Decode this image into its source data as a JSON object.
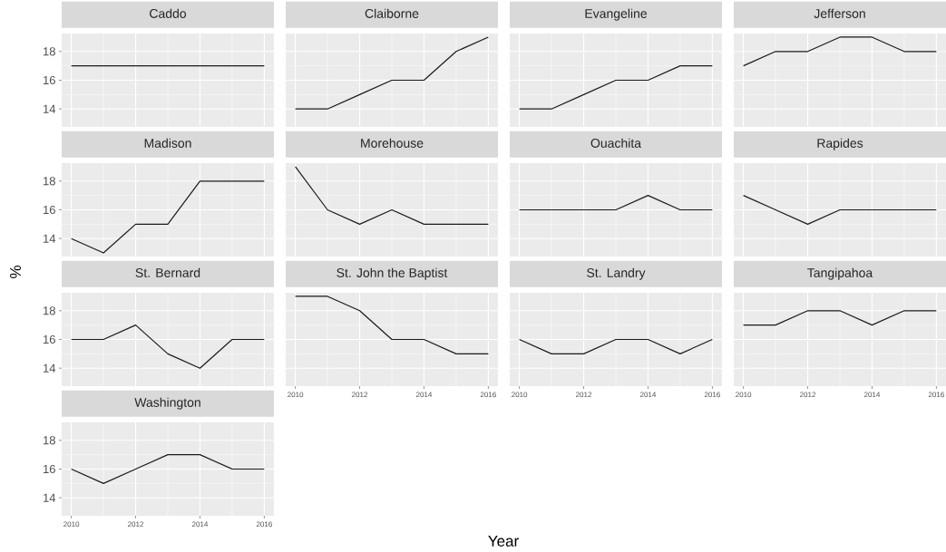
{
  "chart_data": [
    {
      "type": "line",
      "title": "Caddo",
      "x": [
        2010,
        2011,
        2012,
        2013,
        2014,
        2015,
        2016
      ],
      "values": [
        17,
        17,
        17,
        17,
        17,
        17,
        17
      ],
      "color": "#1a1a1a",
      "xlim": [
        2009.7,
        2016.3
      ],
      "ylim": [
        12.75,
        19.25
      ],
      "xticks": [
        2010,
        2012,
        2014,
        2016
      ],
      "yticks": [
        14,
        16,
        18
      ],
      "grid": true,
      "tick_labels": "y"
    },
    {
      "type": "line",
      "title": "Claiborne",
      "x": [
        2010,
        2011,
        2012,
        2013,
        2014,
        2015,
        2016
      ],
      "values": [
        14,
        14,
        15,
        16,
        16,
        18,
        19
      ],
      "color": "#1a1a1a",
      "xlim": [
        2009.7,
        2016.3
      ],
      "ylim": [
        12.75,
        19.25
      ],
      "xticks": [
        2010,
        2012,
        2014,
        2016
      ],
      "yticks": [
        14,
        16,
        18
      ],
      "grid": true,
      "tick_labels": false
    },
    {
      "type": "line",
      "title": "Evangeline",
      "x": [
        2010,
        2011,
        2012,
        2013,
        2014,
        2015,
        2016
      ],
      "values": [
        14,
        14,
        15,
        16,
        16,
        17,
        17
      ],
      "color": "#1a1a1a",
      "xlim": [
        2009.7,
        2016.3
      ],
      "ylim": [
        12.75,
        19.25
      ],
      "xticks": [
        2010,
        2012,
        2014,
        2016
      ],
      "yticks": [
        14,
        16,
        18
      ],
      "grid": true,
      "tick_labels": false
    },
    {
      "type": "line",
      "title": "Jefferson",
      "x": [
        2010,
        2011,
        2012,
        2013,
        2014,
        2015,
        2016
      ],
      "values": [
        17,
        18,
        18,
        19,
        19,
        18,
        18
      ],
      "color": "#1a1a1a",
      "xlim": [
        2009.7,
        2016.3
      ],
      "ylim": [
        12.75,
        19.25
      ],
      "xticks": [
        2010,
        2012,
        2014,
        2016
      ],
      "yticks": [
        14,
        16,
        18
      ],
      "grid": true,
      "tick_labels": false
    },
    {
      "type": "line",
      "title": "Madison",
      "x": [
        2010,
        2011,
        2012,
        2013,
        2014,
        2015,
        2016
      ],
      "values": [
        14,
        13,
        15,
        15,
        18,
        18,
        18
      ],
      "color": "#1a1a1a",
      "xlim": [
        2009.7,
        2016.3
      ],
      "ylim": [
        12.75,
        19.25
      ],
      "xticks": [
        2010,
        2012,
        2014,
        2016
      ],
      "yticks": [
        14,
        16,
        18
      ],
      "grid": true,
      "tick_labels": "y"
    },
    {
      "type": "line",
      "title": "Morehouse",
      "x": [
        2010,
        2011,
        2012,
        2013,
        2014,
        2015,
        2016
      ],
      "values": [
        19,
        16,
        15,
        16,
        15,
        15,
        15
      ],
      "color": "#1a1a1a",
      "xlim": [
        2009.7,
        2016.3
      ],
      "ylim": [
        12.75,
        19.25
      ],
      "xticks": [
        2010,
        2012,
        2014,
        2016
      ],
      "yticks": [
        14,
        16,
        18
      ],
      "grid": true,
      "tick_labels": false
    },
    {
      "type": "line",
      "title": "Ouachita",
      "x": [
        2010,
        2011,
        2012,
        2013,
        2014,
        2015,
        2016
      ],
      "values": [
        16,
        16,
        16,
        16,
        17,
        16,
        16
      ],
      "color": "#1a1a1a",
      "xlim": [
        2009.7,
        2016.3
      ],
      "ylim": [
        12.75,
        19.25
      ],
      "xticks": [
        2010,
        2012,
        2014,
        2016
      ],
      "yticks": [
        14,
        16,
        18
      ],
      "grid": true,
      "tick_labels": false
    },
    {
      "type": "line",
      "title": "Rapides",
      "x": [
        2010,
        2011,
        2012,
        2013,
        2014,
        2015,
        2016
      ],
      "values": [
        17,
        16,
        15,
        16,
        16,
        16,
        16
      ],
      "color": "#1a1a1a",
      "xlim": [
        2009.7,
        2016.3
      ],
      "ylim": [
        12.75,
        19.25
      ],
      "xticks": [
        2010,
        2012,
        2014,
        2016
      ],
      "yticks": [
        14,
        16,
        18
      ],
      "grid": true,
      "tick_labels": false
    },
    {
      "type": "line",
      "title": "St. Bernard",
      "ylabel": "%",
      "x": [
        2010,
        2011,
        2012,
        2013,
        2014,
        2015,
        2016
      ],
      "values": [
        16,
        16,
        17,
        15,
        14,
        16,
        16
      ],
      "color": "#1a1a1a",
      "xlim": [
        2009.7,
        2016.3
      ],
      "ylim": [
        12.75,
        19.25
      ],
      "xticks": [
        2010,
        2012,
        2014,
        2016
      ],
      "yticks": [
        14,
        16,
        18
      ],
      "grid": true,
      "tick_labels": "y"
    },
    {
      "type": "line",
      "title": "St. John the Baptist",
      "xlabel": "Year",
      "x": [
        2010,
        2011,
        2012,
        2013,
        2014,
        2015,
        2016
      ],
      "values": [
        19,
        19,
        18,
        16,
        16,
        15,
        15
      ],
      "color": "#1a1a1a",
      "xlim": [
        2009.7,
        2016.3
      ],
      "ylim": [
        12.75,
        19.25
      ],
      "xticks": [
        2010,
        2012,
        2014,
        2016
      ],
      "yticks": [
        14,
        16,
        18
      ],
      "grid": true,
      "tick_labels": "x"
    },
    {
      "type": "line",
      "title": "St. Landry",
      "x": [
        2010,
        2011,
        2012,
        2013,
        2014,
        2015,
        2016
      ],
      "values": [
        16,
        15,
        15,
        16,
        16,
        15,
        16
      ],
      "color": "#1a1a1a",
      "xlim": [
        2009.7,
        2016.3
      ],
      "ylim": [
        12.75,
        19.25
      ],
      "xticks": [
        2010,
        2012,
        2014,
        2016
      ],
      "yticks": [
        14,
        16,
        18
      ],
      "grid": true,
      "tick_labels": "x"
    },
    {
      "type": "line",
      "title": "Tangipahoa",
      "x": [
        2010,
        2011,
        2012,
        2013,
        2014,
        2015,
        2016
      ],
      "values": [
        17,
        17,
        18,
        18,
        17,
        18,
        18
      ],
      "color": "#1a1a1a",
      "xlim": [
        2009.7,
        2016.3
      ],
      "ylim": [
        12.75,
        19.25
      ],
      "xticks": [
        2010,
        2012,
        2014,
        2016
      ],
      "yticks": [
        14,
        16,
        18
      ],
      "grid": true,
      "tick_labels": "x"
    },
    {
      "type": "line",
      "title": "Washington",
      "x": [
        2010,
        2011,
        2012,
        2013,
        2014,
        2015,
        2016
      ],
      "values": [
        16,
        15,
        16,
        17,
        17,
        16,
        16
      ],
      "color": "#1a1a1a",
      "xlim": [
        2009.7,
        2016.3
      ],
      "ylim": [
        12.75,
        19.25
      ],
      "xticks": [
        2010,
        2012,
        2014,
        2016
      ],
      "yticks": [
        14,
        16,
        18
      ],
      "grid": true
    }
  ]
}
